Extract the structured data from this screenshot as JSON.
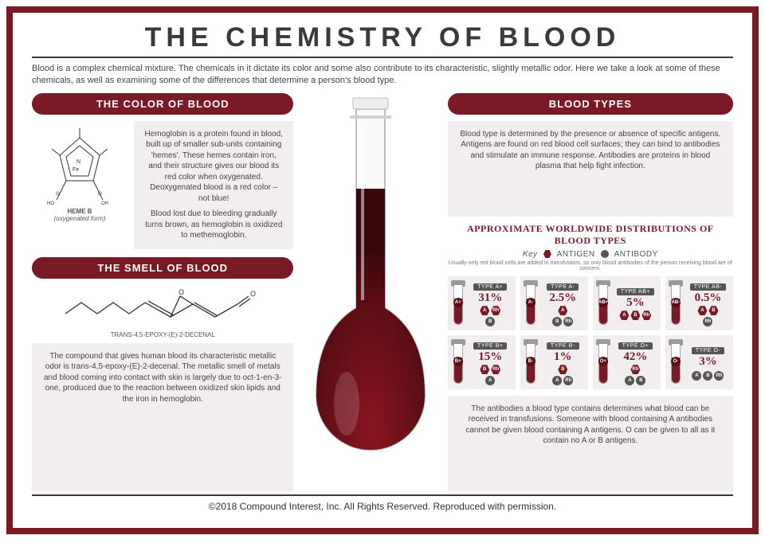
{
  "title": "THE CHEMISTRY OF BLOOD",
  "intro": "Blood is a complex chemical mixture. The chemicals in it dictate its color and some also contribute to its characteristic, slightly metallic odor. Here we take a look at some of these chemicals, as well as examining some of the differences that determine a person's blood type.",
  "colors": {
    "accent": "#7a1a26",
    "panel_bg": "#f2eeef",
    "text": "#444444",
    "antigen": "#7a1a26",
    "antibody": "#555555"
  },
  "left": {
    "color_heading": "THE COLOR OF BLOOD",
    "heme_caption_name": "HEME B",
    "heme_caption_form": "(oxygenated form)",
    "color_text_1": "Hemoglobin is a protein found in blood, built up of smaller sub-units containing 'hemes'. These hemes contain iron, and their structure gives our blood its red color when oxygenated. Deoxygenated blood is a red color – not blue!",
    "color_text_2": "Blood lost due to bleeding gradually turns brown, as hemoglobin is oxidized to methemoglobin.",
    "smell_heading": "THE SMELL OF BLOOD",
    "smell_mol_caption": "TRANS-4,5-EPOXY-(E)-2-DECENAL",
    "smell_text": "The compound that gives human blood its characteristic metallic odor is trans-4,5-epoxy-(E)-2-decenal. The metallic smell of metals and blood coming into contact with skin is largely due to oct-1-en-3-one, produced due to the reaction between oxidized skin lipids and the iron in hemoglobin."
  },
  "right": {
    "types_heading": "BLOOD TYPES",
    "types_intro": "Blood type is determined by the presence or absence of specific antigens. Antigens are found on red blood cell surfaces; they can bind to antibodies and stimulate an immune response. Antibodies are proteins in blood plasma that help fight infection.",
    "dist_heading": "APPROXIMATE WORLDWIDE DISTRIBUTIONS OF BLOOD TYPES",
    "key_label": "Key",
    "key_antigen": "ANTIGEN",
    "key_antibody": "ANTIBODY",
    "note": "Usually only red blood cells are added in transfusions, so only blood antibodies of the person receiving blood are of concern.",
    "types_outro": "The antibodies a blood type contains determines what blood can be received in transfusions. Someone with blood containing A antibodies cannot be given blood containing A antigens. O can be given to all as it contain no A or B antigens.",
    "blood_types": [
      {
        "label": "TYPE A+",
        "short": "A+",
        "pct": "31%",
        "antigens": [
          "A",
          "Rh"
        ],
        "antibodies": [
          "B"
        ]
      },
      {
        "label": "TYPE A-",
        "short": "A-",
        "pct": "2.5%",
        "antigens": [
          "A"
        ],
        "antibodies": [
          "B",
          "Rh"
        ]
      },
      {
        "label": "TYPE AB+",
        "short": "AB+",
        "pct": "5%",
        "antigens": [
          "A",
          "B",
          "Rh"
        ],
        "antibodies": []
      },
      {
        "label": "TYPE AB-",
        "short": "AB-",
        "pct": "0.5%",
        "antigens": [
          "A",
          "B"
        ],
        "antibodies": [
          "Rh"
        ]
      },
      {
        "label": "TYPE B+",
        "short": "B+",
        "pct": "15%",
        "antigens": [
          "B",
          "Rh"
        ],
        "antibodies": [
          "A"
        ]
      },
      {
        "label": "TYPE B-",
        "short": "B-",
        "pct": "1%",
        "antigens": [
          "B"
        ],
        "antibodies": [
          "A",
          "Rh"
        ]
      },
      {
        "label": "TYPE O+",
        "short": "O+",
        "pct": "42%",
        "antigens": [
          "Rh"
        ],
        "antibodies": [
          "A",
          "B"
        ]
      },
      {
        "label": "TYPE O-",
        "short": "O-",
        "pct": "3%",
        "antigens": [],
        "antibodies": [
          "A",
          "B",
          "Rh"
        ]
      }
    ]
  },
  "footer": "©2018 Compound Interest, Inc. All Rights Reserved. Reproduced with permission."
}
